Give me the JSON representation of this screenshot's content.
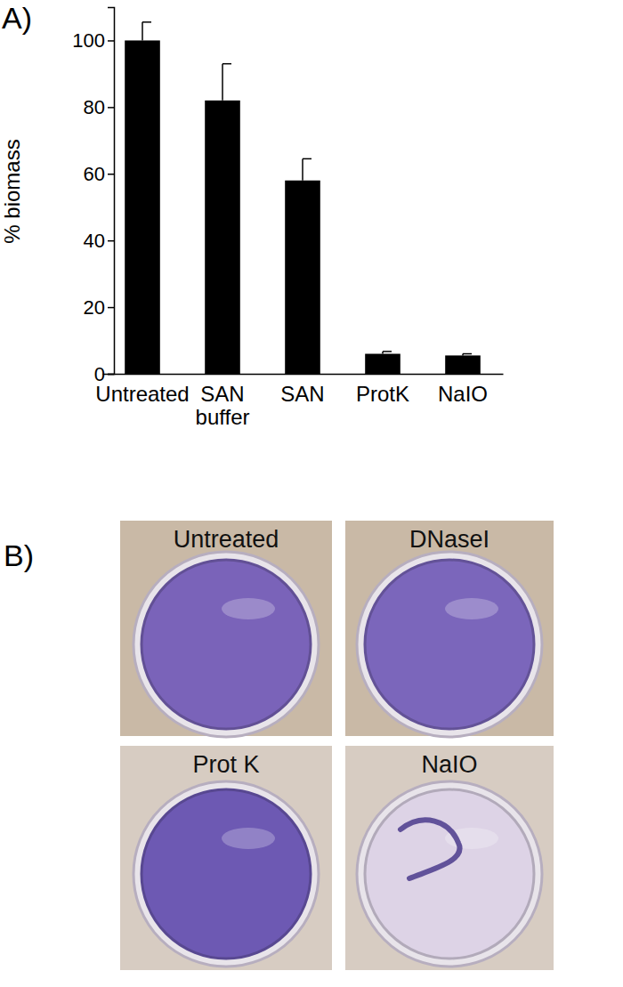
{
  "chart_data": {
    "type": "bar",
    "panel_label": "A)",
    "ylabel": "% biomass",
    "categories": [
      "Untreated",
      "SAN buffer",
      "SAN",
      "ProtK",
      "NaIO"
    ],
    "values": [
      100,
      82,
      58,
      6,
      5.5
    ],
    "errors": [
      5.5,
      11,
      6.5,
      0.7,
      0.5
    ],
    "color": "#000000",
    "ylim": [
      0,
      110
    ],
    "yticks": [
      0,
      20,
      40,
      60,
      80,
      100
    ]
  },
  "panel_b": {
    "label": "B)",
    "wells": [
      {
        "label": "Untreated",
        "color": "#7a63b9"
      },
      {
        "label": "DNaseI",
        "color": "#7b66bb"
      },
      {
        "label": "Prot K",
        "color": "#6d59b3"
      },
      {
        "label": "NaIO",
        "color": "#ddd3e6"
      }
    ]
  }
}
